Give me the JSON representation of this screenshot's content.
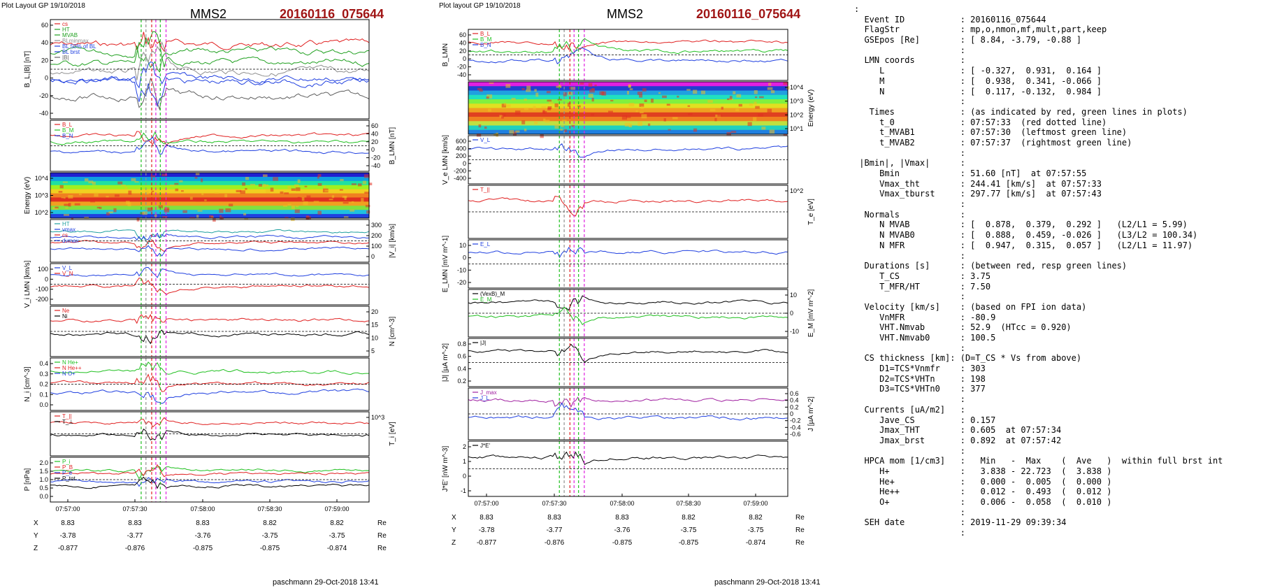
{
  "panels": [
    {
      "header": "Plot Layout GP 19/10/2018",
      "title": "MMS2",
      "event_label": "20160116_075644",
      "footer": "paschmann 29-Oct-2018 13:41",
      "time_ticks": [
        "07:57:00",
        "07:57:30",
        "07:58:00",
        "07:58:30",
        "07:59:00"
      ],
      "position_labels": [
        "X",
        "Y",
        "Z"
      ],
      "position_unit": "Re",
      "position_rows": [
        [
          "8.83",
          "8.83",
          "8.83",
          "8.82",
          "8.82"
        ],
        [
          "-3.78",
          "-3.77",
          "-3.76",
          "-3.75",
          "-3.75"
        ],
        [
          "-0.877",
          "-0.876",
          "-0.875",
          "-0.875",
          "-0.874"
        ]
      ],
      "subplots": [
        {
          "ylabel": "B_L,|B| [nT]",
          "ticks": [
            "60",
            "40",
            "20",
            "0",
            "-20",
            "-40"
          ],
          "legend": [
            {
              "text": "cs",
              "color": "#e02020"
            },
            {
              "text": "HT",
              "color": "#20a020"
            },
            {
              "text": "MVAB",
              "color": "#20a020"
            },
            {
              "text": "BLminmax",
              "color": "#909090"
            },
            {
              "text": "BL 50% of BL",
              "color": "#2040e0"
            },
            {
              "text": "BL brst",
              "color": "#2040e0"
            },
            {
              "text": "|B|",
              "color": "#606060"
            }
          ]
        },
        {
          "ylabel": "B_LMN [nT]",
          "ticks": [
            "60",
            "40",
            "20",
            "0",
            "-20",
            "-40"
          ],
          "legend": [
            {
              "text": "B_L",
              "color": "#e02020"
            },
            {
              "text": "B_M",
              "color": "#20c020"
            },
            {
              "text": "B_N",
              "color": "#2040e0"
            }
          ]
        },
        {
          "ylabel": "Energy (eV)",
          "ticks": [
            "10^4",
            "10^3",
            "10^2"
          ],
          "legend": []
        },
        {
          "ylabel": "|V_i| [km/s]",
          "ticks": [
            "300",
            "200",
            "100",
            "0"
          ],
          "legend": [
            {
              "text": "HT",
              "color": "#20a0a0"
            },
            {
              "text": "vmax",
              "color": "#2040e0"
            },
            {
              "text": "cs",
              "color": "#e02020"
            },
            {
              "text": "dvmax",
              "color": "#2040e0"
            }
          ]
        },
        {
          "ylabel": "V_i LMN [km/s]",
          "ticks": [
            "100",
            "0",
            "-100",
            "-200"
          ],
          "legend": [
            {
              "text": "V_L",
              "color": "#2040e0"
            },
            {
              "text": "V_N",
              "color": "#e02020"
            }
          ]
        },
        {
          "ylabel": "N [cm^-3]",
          "ticks": [
            "20",
            "15",
            "10",
            "5"
          ],
          "legend": [
            {
              "text": "Ne",
              "color": "#e02020"
            },
            {
              "text": "Ni",
              "color": "#000000"
            }
          ]
        },
        {
          "ylabel": "N_i [cm^-3]",
          "ticks": [
            "0.4",
            "0.3",
            "0.2",
            "0.1",
            "0.0"
          ],
          "legend": [
            {
              "text": "N He+",
              "color": "#20c020"
            },
            {
              "text": "N He++",
              "color": "#e02020"
            },
            {
              "text": "N O+",
              "color": "#2040e0"
            }
          ]
        },
        {
          "ylabel": "T_i [eV]",
          "ticks": [
            "10^3"
          ],
          "legend": [
            {
              "text": "T_||",
              "color": "#e02020"
            },
            {
              "text": "T_⊥",
              "color": "#000000"
            }
          ]
        },
        {
          "ylabel": "P [nPa]",
          "ticks": [
            "2.0",
            "1.5",
            "1.0",
            "0.5",
            "0.0"
          ],
          "legend": [
            {
              "text": "P_i",
              "color": "#20c020"
            },
            {
              "text": "P_B",
              "color": "#e02020"
            },
            {
              "text": "P_e",
              "color": "#2040e0"
            },
            {
              "text": "P_tot",
              "color": "#000000"
            }
          ]
        }
      ]
    },
    {
      "header": "Plot layout GP 19/10/2018",
      "title": "MMS2",
      "event_label": "20160116_075644",
      "footer": "paschmann 29-Oct-2018 13:41",
      "time_ticks": [
        "07:57:00",
        "07:57:30",
        "07:58:00",
        "07:58:30",
        "07:59:00"
      ],
      "position_labels": [
        "X",
        "Y",
        "Z"
      ],
      "position_unit": "Re",
      "position_rows": [
        [
          "8.83",
          "8.83",
          "8.83",
          "8.82",
          "8.82"
        ],
        [
          "-3.78",
          "-3.77",
          "-3.76",
          "-3.75",
          "-3.75"
        ],
        [
          "-0.877",
          "-0.876",
          "-0.875",
          "-0.875",
          "-0.874"
        ]
      ],
      "subplots": [
        {
          "ylabel": "B_LMN",
          "ticks": [
            "60",
            "40",
            "20",
            "0",
            "-20",
            "-40"
          ],
          "legend": [
            {
              "text": "B_L",
              "color": "#e02020"
            },
            {
              "text": "B_M",
              "color": "#20c020"
            },
            {
              "text": "B_N",
              "color": "#2040e0"
            }
          ]
        },
        {
          "ylabel": "Energy (eV)",
          "ticks": [
            "10^4",
            "10^3",
            "10^2",
            "10^1"
          ],
          "legend": []
        },
        {
          "ylabel": "V_e LMN [km/s]",
          "ticks": [
            "600",
            "400",
            "200",
            "0",
            "-200",
            "-400"
          ],
          "legend": [
            {
              "text": "V_L",
              "color": "#2040e0"
            }
          ]
        },
        {
          "ylabel": "T_e [eV]",
          "ticks": [
            "10^2"
          ],
          "legend": [
            {
              "text": "T_||",
              "color": "#e02020"
            }
          ]
        },
        {
          "ylabel": "E_LMN [mV m^-1]",
          "ticks": [
            "10",
            "0",
            "-10",
            "-20"
          ],
          "legend": [
            {
              "text": "E_L",
              "color": "#2040e0"
            }
          ]
        },
        {
          "ylabel": "E_M [mV m^-2]",
          "ticks": [
            "10",
            "0",
            "-10"
          ],
          "legend": [
            {
              "text": "(VexB)_M",
              "color": "#000000"
            },
            {
              "text": "E_M",
              "color": "#20c020"
            }
          ]
        },
        {
          "ylabel": "|J| [µA m^-2]",
          "ticks": [
            "0.8",
            "0.6",
            "0.4",
            "0.2"
          ],
          "legend": [
            {
              "text": "|J|",
              "color": "#000000"
            }
          ]
        },
        {
          "ylabel": "J [µA m^-2]",
          "ticks": [
            "0.6",
            "0.4",
            "0.2",
            "0",
            "-0.2",
            "-0.4",
            "-0.6"
          ],
          "legend": [
            {
              "text": "J_max",
              "color": "#a020a0"
            },
            {
              "text": "J_L",
              "color": "#2040e0"
            }
          ]
        },
        {
          "ylabel": "J*E' [nW m^-3]",
          "ticks": [
            "2",
            "1",
            "0",
            "-1"
          ],
          "legend": [
            {
              "text": "J*E'",
              "color": "#000000"
            }
          ]
        }
      ]
    }
  ],
  "info_lines": [
    ":",
    "  Event ID           : 20160116_075644",
    "  FlagStr            : mp,o,nmon,mf,mult,part,keep",
    "  GSEpos [Re]        : [ 8.84, -3.79, -0.88 ]",
    "                     :",
    "  LMN coords         :",
    "     L               : [ -0.327,  0.931,  0.164 ]",
    "     M               : [  0.938,  0.341, -0.066 ]",
    "     N               : [  0.117, -0.132,  0.984 ]",
    "                     :",
    "   Times             : (as indicated by red, green lines in plots)",
    "     t_0             : 07:57:33  (red dotted line)",
    "     t_MVAB1         : 07:57:30  (leftmost green line)",
    "     t_MVAB2         : 07:57:37  (rightmost green line)",
    "                     :",
    " |Bmin|, |Vmax|      :",
    "     Bmin            : 51.60 [nT]  at 07:57:55",
    "     Vmax_tht        : 244.41 [km/s]  at 07:57:33",
    "     Vmax_tburst     : 297.77 [km/s]  at 07:57:43",
    "                     :",
    "  Normals            :",
    "     N MVAB          : [  0.878,  0.379,  0.292 ]   (L2/L1 = 5.99)",
    "     N MVAB0         : [  0.888,  0.459, -0.026 ]   (L3/L2 = 100.34)",
    "     N MFR           : [  0.947,  0.315,  0.057 ]   (L2/L1 = 11.97)",
    "                     :",
    "  Durations [s]      : (between red, resp green lines)",
    "     T_CS            : 3.75",
    "     T_MFR/HT        : 7.50",
    "                     :",
    "  Velocity [km/s]    : (based on FPI ion data)",
    "     VnMFR           : -80.9",
    "     VHT.Nmvab       : 52.9  (HTcc = 0.920)",
    "     VHT.Nmvab0      : 100.5",
    "                     :",
    "  CS thickness [km]: (D=T_CS * Vs from above)",
    "     D1=TCS*Vnmfr    : 303",
    "     D2=TCS*VHTn     : 198",
    "     D3=TCS*VHTn0    : 377",
    "                     :",
    "  Currents [uA/m2]   :",
    "     Jave_CS         : 0.157",
    "     Jmax_THT        : 0.605  at 07:57:34",
    "     Jmax_brst       : 0.892  at 07:57:42",
    "                     :",
    "  HPCA mom [1/cm3]   :   Min   -  Max    (  Ave   )  within full brst int",
    "     H+              :   3.838 - 22.723  (  3.838 )",
    "     He+             :   0.000 -  0.005  (  0.000 )",
    "     He++            :   0.012 -  0.493  (  0.012 )",
    "     O+              :   0.006 -  0.058  (  0.010 )",
    "                     :",
    "  SEH date           : 2019-11-29 09:39:34",
    "                     :"
  ],
  "colors": {
    "red": "#e02020",
    "green": "#20c020",
    "blue": "#2040e0",
    "magenta": "#e020e0",
    "dark_red": "#a01515"
  }
}
